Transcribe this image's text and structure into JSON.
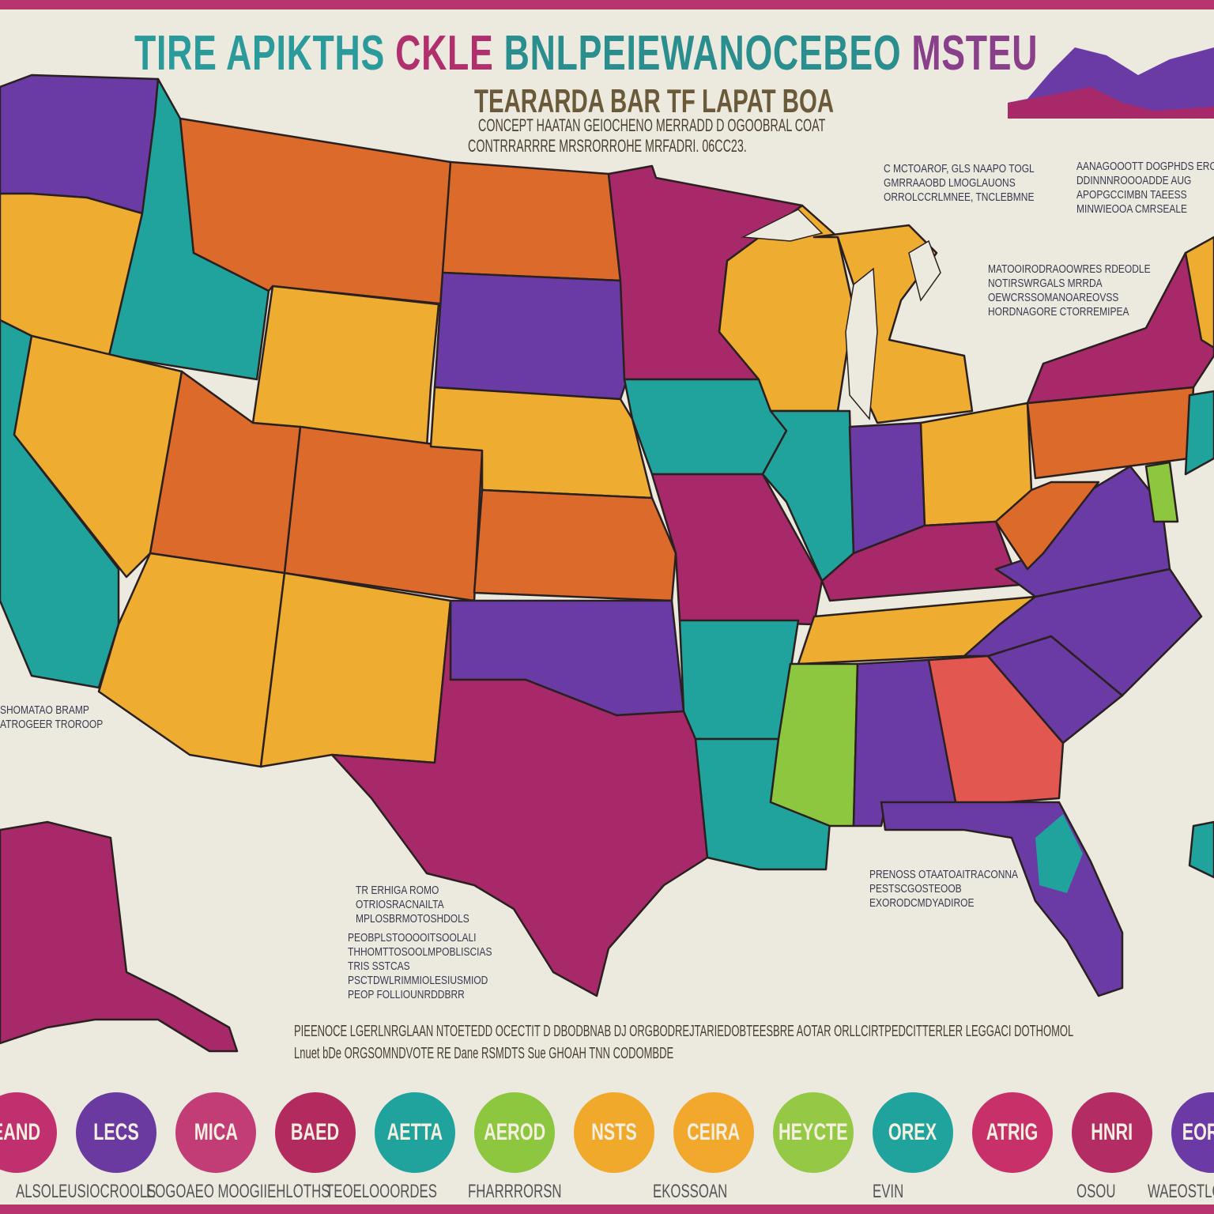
{
  "title": {
    "part1": "TIRE APIKTHS",
    "part2": "CKLE",
    "part3": "BNLPEIEWANOCEBEO",
    "part4": "MSTEU"
  },
  "subtitle": "TEARARDA BAR TF LAPAT BOA",
  "header_lines": [
    "CONCEPT HAATAN GEIOCHENO MERRADD D OGOOBRAL COAT",
    "CONTRRARRRE MRSRORROHE MRFADRI. 06CC23."
  ],
  "notes": [
    {
      "text": "C MCTOAROF, GLS NAAPO TOGL\nGMRRAAOBD LMOGLAUONS\nORROLCCRLMNEE, TNCLEBMNE"
    },
    {
      "text": "AANAGOOOTT DOGPHDS EROAES\nDDINNNROOOADDE AUG\nAPOPGCCIMBN TAEESS\nMINWIEOOA CMRSEALE"
    },
    {
      "text": "MATOOIRODRAOOWRES RDEODLE\nNOTIRSWRGALS MRRDA\nOEWCRSSOMANOAREOVSS\nHORDNAGORE CTORREMIPEA"
    },
    {
      "text": "TR ERHIGA ROMO\nOTRIOSRACNAILTA\nMPLOSBRMOTOSHDOLS"
    },
    {
      "text": "PEOBPLSTOOOOITSOOLALI\nTHHOMTTOSOOLMPOBLISCIAS\nTRIS SSTCAS\nPSCTDWLRIMMIOLESIUSMIOD\nPEOP FOLLIOUNRDDBRR"
    },
    {
      "text": "PRENOSS OTAATOAITRACONNA\nPESTSCGOSTEOOB\nEXORODCMDYADIROE"
    },
    {
      "text": "SHOMATAO BRAMP\nATROGEER TROROOP"
    }
  ],
  "long_note": "PIEENOCE LGERLNRGLAAN  NTOETEDD OCECTIT  D   DBODBNAB  DJ ORGBODREJTARIEDOBTEESBRE AOTAR ORLLCIRTPEDCITTERLER LEGGACI DOTHOMOL",
  "long_note_2": "Lnuet bDe ORGSOMNDVOTE RE   Dane  RSMDTS Sue  GHOAH TNN  CODOMBDE",
  "legend": [
    {
      "label": "EAND",
      "color": "#c0306e"
    },
    {
      "label": "LECS",
      "color": "#6a3aa0"
    },
    {
      "label": "MICA",
      "color": "#c23c76"
    },
    {
      "label": "BAED",
      "color": "#b22a5e"
    },
    {
      "label": "AETTA",
      "color": "#1fa39c"
    },
    {
      "label": "AEROD",
      "color": "#8dc63f"
    },
    {
      "label": "NSTS",
      "color": "#f0a92a"
    },
    {
      "label": "CEIRA",
      "color": "#f2a72d"
    },
    {
      "label": "HEYCTE",
      "color": "#95c945"
    },
    {
      "label": "OREX",
      "color": "#1fa39c"
    },
    {
      "label": "ATRIG",
      "color": "#c8306a"
    },
    {
      "label": "HNRI",
      "color": "#b32c63"
    },
    {
      "label": "EORTH",
      "color": "#6b3aa5"
    }
  ],
  "footer": [
    "ALSOLEUSIOCROOLS",
    "EOGOAEO MOOGIIEHLOTHS",
    "TEOELOOORDES",
    "FHARRRORSN",
    "EKOSSOAN",
    "EVIN",
    "OSOU",
    "WAEOSTLO"
  ],
  "colors": {
    "orange": "#dc6b2b",
    "purple": "#6a3aa5",
    "teal": "#1fa39c",
    "yellow": "#eeac30",
    "magenta": "#a8296a",
    "green": "#8dc63f",
    "coral": "#e2574f",
    "paper": "#ece9df",
    "border": "#b8346f"
  }
}
